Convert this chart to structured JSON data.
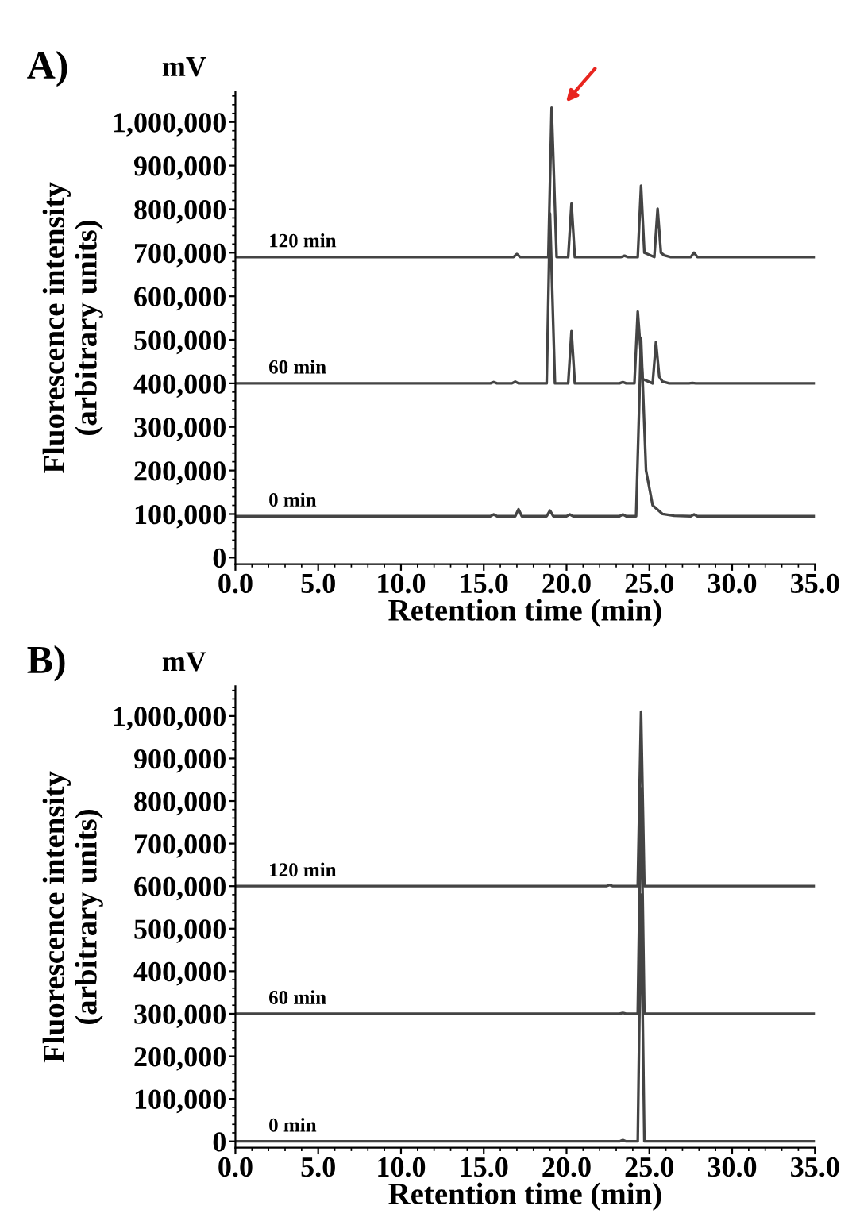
{
  "chart_data": [
    {
      "type": "line",
      "title": "A)",
      "xlabel": "Retention time (min)",
      "ylabel": "Fluorescence intensity\n(arbitrary units)",
      "annotations": [
        "mV"
      ],
      "xlim": [
        0,
        35
      ],
      "ylim": [
        -15000,
        1070000
      ],
      "xticks": [
        {
          "value": 0,
          "label": "0.0"
        },
        {
          "value": 5,
          "label": "5.0"
        },
        {
          "value": 10,
          "label": "10.0"
        },
        {
          "value": 15,
          "label": "15.0"
        },
        {
          "value": 20,
          "label": "20.0"
        },
        {
          "value": 25,
          "label": "25.0"
        },
        {
          "value": 30,
          "label": "30.0"
        },
        {
          "value": 35,
          "label": "35.0"
        }
      ],
      "yticks": [
        0,
        {
          "value": 100000,
          "label": "100,000"
        },
        {
          "value": 200000,
          "label": "200,000"
        },
        {
          "value": 300000,
          "label": "300,000"
        },
        {
          "value": 400000,
          "label": "400,000"
        },
        {
          "value": 500000,
          "label": "500,000"
        },
        {
          "value": 600000,
          "label": "600,000"
        },
        {
          "value": 700000,
          "label": "700,000"
        },
        {
          "value": 800000,
          "label": "800,000"
        },
        {
          "value": 900000,
          "label": "900,000"
        },
        {
          "value": 1000000,
          "label": "1,000,000"
        }
      ],
      "grid": false,
      "legend": false,
      "marker": "none",
      "line_style": "solid",
      "series": [
        {
          "name": "0 min",
          "color": "#444444",
          "x": [
            0,
            15.4,
            15.6,
            15.8,
            16.9,
            17.1,
            17.3,
            18.8,
            19.0,
            19.2,
            20.0,
            20.2,
            20.4,
            23.2,
            23.4,
            23.6,
            24.2,
            24.5,
            24.8,
            25.2,
            25.8,
            26.5,
            27.5,
            27.7,
            27.9,
            35
          ],
          "values": [
            95000,
            95000,
            99000,
            95000,
            95000,
            111000,
            95000,
            95000,
            108000,
            95000,
            95000,
            99000,
            95000,
            95000,
            99000,
            95000,
            95000,
            503000,
            200000,
            120000,
            100000,
            96000,
            95000,
            99000,
            95000,
            95000
          ]
        },
        {
          "name": "60 min",
          "color": "#444444",
          "x": [
            0,
            15.4,
            15.6,
            15.8,
            16.7,
            16.9,
            17.1,
            18.8,
            19.0,
            19.3,
            20.1,
            20.3,
            20.5,
            23.2,
            23.4,
            23.6,
            24.1,
            24.3,
            24.6,
            25.2,
            25.4,
            25.6,
            25.8,
            26.2,
            27.4,
            27.6,
            27.8,
            35
          ],
          "values": [
            400000,
            400000,
            403000,
            400000,
            400000,
            404000,
            400000,
            400000,
            790000,
            400000,
            400000,
            520000,
            400000,
            400000,
            403000,
            400000,
            400000,
            565000,
            410000,
            400000,
            495000,
            415000,
            404000,
            400000,
            400000,
            401000,
            400000,
            400000
          ]
        },
        {
          "name": "120 min",
          "color": "#444444",
          "x": [
            0,
            16.8,
            17.0,
            17.2,
            18.9,
            19.1,
            19.4,
            20.1,
            20.3,
            20.5,
            23.3,
            23.5,
            23.7,
            24.3,
            24.5,
            24.7,
            25.3,
            25.5,
            25.7,
            25.9,
            26.3,
            27.5,
            27.7,
            27.9,
            35
          ],
          "values": [
            690000,
            690000,
            697000,
            690000,
            690000,
            1033000,
            690000,
            690000,
            813000,
            690000,
            690000,
            693000,
            690000,
            690000,
            854000,
            700000,
            690000,
            801000,
            700000,
            694000,
            690000,
            690000,
            700000,
            690000,
            690000
          ]
        }
      ]
    },
    {
      "type": "line",
      "title": "B)",
      "xlabel": "Retention time (min)",
      "ylabel": "Fluorescence intensity\n(arbitrary units)",
      "annotations": [
        "mV"
      ],
      "xlim": [
        0,
        35
      ],
      "ylim": [
        -15000,
        1070000
      ],
      "xticks": [
        {
          "value": 0,
          "label": "0.0"
        },
        {
          "value": 5,
          "label": "5.0"
        },
        {
          "value": 10,
          "label": "10.0"
        },
        {
          "value": 15,
          "label": "15.0"
        },
        {
          "value": 20,
          "label": "20.0"
        },
        {
          "value": 25,
          "label": "25.0"
        },
        {
          "value": 30,
          "label": "30.0"
        },
        {
          "value": 35,
          "label": "35.0"
        }
      ],
      "yticks": [
        0,
        {
          "value": 100000,
          "label": "100,000"
        },
        {
          "value": 200000,
          "label": "200,000"
        },
        {
          "value": 300000,
          "label": "300,000"
        },
        {
          "value": 400000,
          "label": "400,000"
        },
        {
          "value": 500000,
          "label": "500,000"
        },
        {
          "value": 600000,
          "label": "600,000"
        },
        {
          "value": 700000,
          "label": "700,000"
        },
        {
          "value": 800000,
          "label": "800,000"
        },
        {
          "value": 900000,
          "label": "900,000"
        },
        {
          "value": 1000000,
          "label": "1,000,000"
        }
      ],
      "grid": false,
      "legend": false,
      "marker": "none",
      "line_style": "solid",
      "series": [
        {
          "name": "0 min",
          "color": "#444444",
          "x": [
            0,
            23.2,
            23.4,
            23.6,
            24.3,
            24.5,
            24.7,
            35
          ],
          "values": [
            0,
            0,
            3000,
            0,
            0,
            580000,
            0,
            0
          ]
        },
        {
          "name": "60 min",
          "color": "#444444",
          "x": [
            0,
            23.2,
            23.4,
            23.6,
            24.3,
            24.5,
            24.7,
            35
          ],
          "values": [
            300000,
            300000,
            302000,
            300000,
            300000,
            830000,
            300000,
            300000
          ]
        },
        {
          "name": "120 min",
          "color": "#444444",
          "x": [
            0,
            22.4,
            22.6,
            22.8,
            24.3,
            24.5,
            24.7,
            35
          ],
          "values": [
            600000,
            600000,
            603000,
            600000,
            600000,
            1010000,
            600000,
            600000
          ]
        }
      ]
    }
  ]
}
